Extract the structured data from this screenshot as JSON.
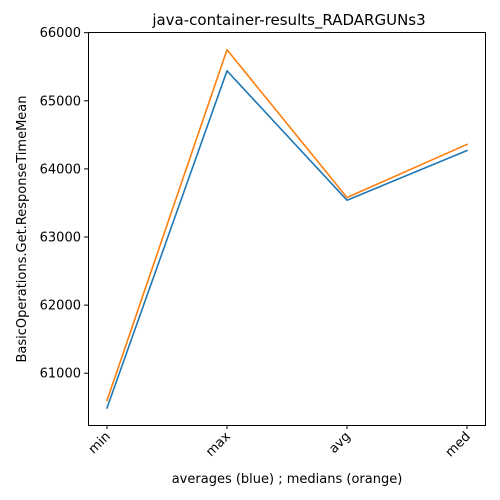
{
  "chart_data": {
    "type": "line",
    "title": "java-container-results_RADARGUNs3",
    "xlabel": "averages (blue) ; medians (orange)",
    "ylabel": "BasicOperations.Get.ResponseTimeMean",
    "categories": [
      "min",
      "max",
      "avg",
      "med"
    ],
    "series": [
      {
        "color": "#1f77b4",
        "values": [
          60490,
          65440,
          63540,
          64270
        ]
      },
      {
        "color": "#ff7f0e",
        "values": [
          60600,
          65750,
          63580,
          64360
        ]
      }
    ],
    "ylim": [
      60240,
      66010
    ],
    "yticks": [
      61000,
      62000,
      63000,
      64000,
      65000,
      66000
    ],
    "ytick_labels": [
      "61000",
      "62000",
      "63000",
      "64000",
      "65000",
      "66000"
    ],
    "grid": false,
    "legend": "none"
  }
}
